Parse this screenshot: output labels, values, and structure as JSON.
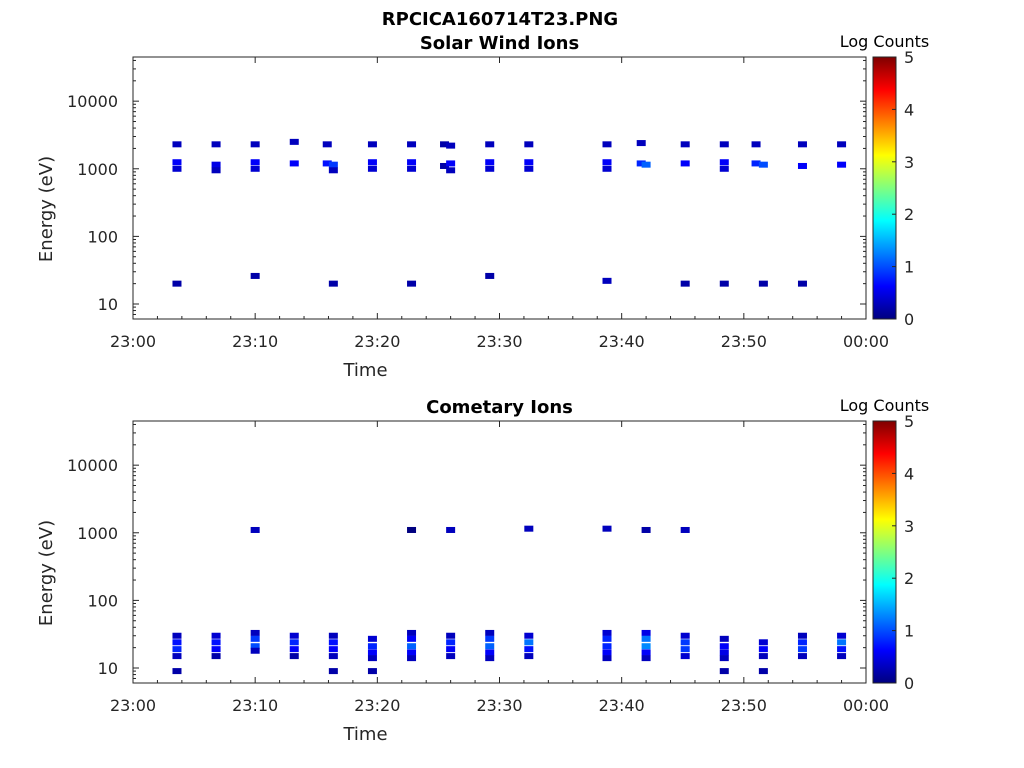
{
  "figure_title": "RPCICA160714T23.PNG",
  "chart_data": [
    {
      "type": "heatmap",
      "title": "Solar Wind Ions",
      "xlabel": "Time",
      "ylabel": "Energy (eV)",
      "x_ticks": [
        "23:00",
        "23:10",
        "23:20",
        "23:30",
        "23:40",
        "23:50",
        "00:00"
      ],
      "x_range_minutes": [
        0,
        60
      ],
      "y_ticks": [
        "10",
        "100",
        "1000",
        "10000"
      ],
      "y_scale": "log",
      "y_range": [
        6,
        45000
      ],
      "colorbar": {
        "label": "Log Counts",
        "range": [
          0,
          5
        ],
        "ticks": [
          "0",
          "1",
          "2",
          "3",
          "4",
          "5"
        ]
      },
      "time_columns_minutes": [
        3.6,
        6.8,
        10.0,
        13.2,
        15.9,
        16.4,
        19.6,
        22.8,
        25.5,
        26.0,
        29.2,
        32.4,
        38.8,
        41.6,
        42.0,
        45.2,
        48.4,
        51.0,
        51.6,
        54.8,
        58.0
      ],
      "cells": [
        {
          "t": 3.6,
          "e": 2300,
          "v": 0.3
        },
        {
          "t": 3.6,
          "e": 1250,
          "v": 0.6
        },
        {
          "t": 3.6,
          "e": 1000,
          "v": 0.4
        },
        {
          "t": 3.6,
          "e": 20,
          "v": 0.2
        },
        {
          "t": 6.8,
          "e": 2300,
          "v": 0.3
        },
        {
          "t": 6.8,
          "e": 1150,
          "v": 0.5
        },
        {
          "t": 6.8,
          "e": 950,
          "v": 0.3
        },
        {
          "t": 10.0,
          "e": 2300,
          "v": 0.3
        },
        {
          "t": 10.0,
          "e": 1250,
          "v": 0.6
        },
        {
          "t": 10.0,
          "e": 1000,
          "v": 0.4
        },
        {
          "t": 10.0,
          "e": 26,
          "v": 0.2
        },
        {
          "t": 13.2,
          "e": 2500,
          "v": 0.3
        },
        {
          "t": 13.2,
          "e": 1200,
          "v": 0.6
        },
        {
          "t": 15.9,
          "e": 2300,
          "v": 0.3
        },
        {
          "t": 15.9,
          "e": 1200,
          "v": 0.7
        },
        {
          "t": 16.4,
          "e": 1150,
          "v": 0.9
        },
        {
          "t": 16.4,
          "e": 950,
          "v": 0.3
        },
        {
          "t": 16.4,
          "e": 20,
          "v": 0.2
        },
        {
          "t": 19.6,
          "e": 2300,
          "v": 0.3
        },
        {
          "t": 19.6,
          "e": 1250,
          "v": 0.6
        },
        {
          "t": 19.6,
          "e": 1000,
          "v": 0.4
        },
        {
          "t": 22.8,
          "e": 2300,
          "v": 0.3
        },
        {
          "t": 22.8,
          "e": 1250,
          "v": 0.6
        },
        {
          "t": 22.8,
          "e": 1000,
          "v": 0.4
        },
        {
          "t": 22.8,
          "e": 20,
          "v": 0.2
        },
        {
          "t": 25.5,
          "e": 2300,
          "v": 0.2
        },
        {
          "t": 25.5,
          "e": 1100,
          "v": 0.2
        },
        {
          "t": 26.0,
          "e": 2200,
          "v": 0.3
        },
        {
          "t": 26.0,
          "e": 1200,
          "v": 0.6
        },
        {
          "t": 26.0,
          "e": 950,
          "v": 0.3
        },
        {
          "t": 29.2,
          "e": 2300,
          "v": 0.3
        },
        {
          "t": 29.2,
          "e": 1250,
          "v": 0.6
        },
        {
          "t": 29.2,
          "e": 1000,
          "v": 0.4
        },
        {
          "t": 29.2,
          "e": 26,
          "v": 0.2
        },
        {
          "t": 32.4,
          "e": 2300,
          "v": 0.3
        },
        {
          "t": 32.4,
          "e": 1250,
          "v": 0.6
        },
        {
          "t": 32.4,
          "e": 1000,
          "v": 0.4
        },
        {
          "t": 38.8,
          "e": 2300,
          "v": 0.3
        },
        {
          "t": 38.8,
          "e": 1250,
          "v": 0.6
        },
        {
          "t": 38.8,
          "e": 1000,
          "v": 0.4
        },
        {
          "t": 38.8,
          "e": 22,
          "v": 0.3
        },
        {
          "t": 41.6,
          "e": 2400,
          "v": 0.3
        },
        {
          "t": 41.6,
          "e": 1200,
          "v": 0.8
        },
        {
          "t": 42.0,
          "e": 1150,
          "v": 1.1
        },
        {
          "t": 45.2,
          "e": 2300,
          "v": 0.3
        },
        {
          "t": 45.2,
          "e": 1200,
          "v": 0.6
        },
        {
          "t": 45.2,
          "e": 20,
          "v": 0.2
        },
        {
          "t": 48.4,
          "e": 2300,
          "v": 0.3
        },
        {
          "t": 48.4,
          "e": 1250,
          "v": 0.6
        },
        {
          "t": 48.4,
          "e": 1000,
          "v": 0.4
        },
        {
          "t": 48.4,
          "e": 20,
          "v": 0.2
        },
        {
          "t": 51.0,
          "e": 2300,
          "v": 0.3
        },
        {
          "t": 51.0,
          "e": 1200,
          "v": 0.8
        },
        {
          "t": 51.6,
          "e": 1150,
          "v": 1.0
        },
        {
          "t": 51.6,
          "e": 20,
          "v": 0.2
        },
        {
          "t": 54.8,
          "e": 2300,
          "v": 0.3
        },
        {
          "t": 54.8,
          "e": 1100,
          "v": 0.6
        },
        {
          "t": 54.8,
          "e": 20,
          "v": 0.2
        },
        {
          "t": 58.0,
          "e": 2300,
          "v": 0.3
        },
        {
          "t": 58.0,
          "e": 1150,
          "v": 0.6
        }
      ]
    },
    {
      "type": "heatmap",
      "title": "Cometary Ions",
      "xlabel": "Time",
      "ylabel": "Energy (eV)",
      "x_ticks": [
        "23:00",
        "23:10",
        "23:20",
        "23:30",
        "23:40",
        "23:50",
        "00:00"
      ],
      "x_range_minutes": [
        0,
        60
      ],
      "y_ticks": [
        "10",
        "100",
        "1000",
        "10000"
      ],
      "y_scale": "log",
      "y_range": [
        6,
        45000
      ],
      "colorbar": {
        "label": "Log Counts",
        "range": [
          0,
          5
        ],
        "ticks": [
          "0",
          "1",
          "2",
          "3",
          "4",
          "5"
        ]
      },
      "time_columns_minutes": [
        3.6,
        6.8,
        10.0,
        13.2,
        16.4,
        19.6,
        22.8,
        26.0,
        29.2,
        32.4,
        38.8,
        42.0,
        45.2,
        48.4,
        51.6,
        54.8,
        58.0
      ],
      "cells": [
        {
          "t": 3.6,
          "e": 30,
          "v": 0.3
        },
        {
          "t": 3.6,
          "e": 24,
          "v": 0.7
        },
        {
          "t": 3.6,
          "e": 19,
          "v": 0.8
        },
        {
          "t": 3.6,
          "e": 15,
          "v": 0.3
        },
        {
          "t": 3.6,
          "e": 9,
          "v": 0.2
        },
        {
          "t": 6.8,
          "e": 30,
          "v": 0.4
        },
        {
          "t": 6.8,
          "e": 24,
          "v": 0.7
        },
        {
          "t": 6.8,
          "e": 19,
          "v": 0.6
        },
        {
          "t": 6.8,
          "e": 15,
          "v": 0.2
        },
        {
          "t": 10.0,
          "e": 1100,
          "v": 0.3
        },
        {
          "t": 10.0,
          "e": 33,
          "v": 0.3
        },
        {
          "t": 10.0,
          "e": 27,
          "v": 0.9
        },
        {
          "t": 10.0,
          "e": 21,
          "v": 1.0
        },
        {
          "t": 10.0,
          "e": 18,
          "v": 0.3
        },
        {
          "t": 13.2,
          "e": 30,
          "v": 0.4
        },
        {
          "t": 13.2,
          "e": 24,
          "v": 0.8
        },
        {
          "t": 13.2,
          "e": 19,
          "v": 0.6
        },
        {
          "t": 13.2,
          "e": 15,
          "v": 0.2
        },
        {
          "t": 16.4,
          "e": 30,
          "v": 0.3
        },
        {
          "t": 16.4,
          "e": 24,
          "v": 0.7
        },
        {
          "t": 16.4,
          "e": 19,
          "v": 0.6
        },
        {
          "t": 16.4,
          "e": 15,
          "v": 0.3
        },
        {
          "t": 16.4,
          "e": 9,
          "v": 0.2
        },
        {
          "t": 19.6,
          "e": 27,
          "v": 0.4
        },
        {
          "t": 19.6,
          "e": 21,
          "v": 0.8
        },
        {
          "t": 19.6,
          "e": 17,
          "v": 0.6
        },
        {
          "t": 19.6,
          "e": 14,
          "v": 0.3
        },
        {
          "t": 19.6,
          "e": 9,
          "v": 0.2
        },
        {
          "t": 22.8,
          "e": 1100,
          "v": 0.0
        },
        {
          "t": 22.8,
          "e": 33,
          "v": 0.3
        },
        {
          "t": 22.8,
          "e": 27,
          "v": 0.6
        },
        {
          "t": 22.8,
          "e": 21,
          "v": 1.1
        },
        {
          "t": 22.8,
          "e": 17,
          "v": 0.6
        },
        {
          "t": 22.8,
          "e": 14,
          "v": 0.3
        },
        {
          "t": 26.0,
          "e": 1100,
          "v": 0.3
        },
        {
          "t": 26.0,
          "e": 30,
          "v": 0.3
        },
        {
          "t": 26.0,
          "e": 24,
          "v": 0.8
        },
        {
          "t": 26.0,
          "e": 19,
          "v": 0.6
        },
        {
          "t": 26.0,
          "e": 15,
          "v": 0.3
        },
        {
          "t": 29.2,
          "e": 33,
          "v": 0.3
        },
        {
          "t": 29.2,
          "e": 27,
          "v": 0.9
        },
        {
          "t": 29.2,
          "e": 21,
          "v": 1.1
        },
        {
          "t": 29.2,
          "e": 17,
          "v": 0.6
        },
        {
          "t": 29.2,
          "e": 14,
          "v": 0.3
        },
        {
          "t": 32.4,
          "e": 1150,
          "v": 0.3
        },
        {
          "t": 32.4,
          "e": 30,
          "v": 0.4
        },
        {
          "t": 32.4,
          "e": 24,
          "v": 1.2
        },
        {
          "t": 32.4,
          "e": 19,
          "v": 0.7
        },
        {
          "t": 32.4,
          "e": 15,
          "v": 0.3
        },
        {
          "t": 38.8,
          "e": 1150,
          "v": 0.3
        },
        {
          "t": 38.8,
          "e": 33,
          "v": 0.4
        },
        {
          "t": 38.8,
          "e": 27,
          "v": 0.8
        },
        {
          "t": 38.8,
          "e": 21,
          "v": 0.8
        },
        {
          "t": 38.8,
          "e": 17,
          "v": 0.6
        },
        {
          "t": 38.8,
          "e": 14,
          "v": 0.3
        },
        {
          "t": 42.0,
          "e": 1100,
          "v": 0.2
        },
        {
          "t": 42.0,
          "e": 33,
          "v": 0.5
        },
        {
          "t": 42.0,
          "e": 27,
          "v": 1.2
        },
        {
          "t": 42.0,
          "e": 21,
          "v": 1.3
        },
        {
          "t": 42.0,
          "e": 17,
          "v": 0.6
        },
        {
          "t": 42.0,
          "e": 14,
          "v": 0.3
        },
        {
          "t": 45.2,
          "e": 1100,
          "v": 0.3
        },
        {
          "t": 45.2,
          "e": 30,
          "v": 0.4
        },
        {
          "t": 45.2,
          "e": 24,
          "v": 0.9
        },
        {
          "t": 45.2,
          "e": 19,
          "v": 0.9
        },
        {
          "t": 45.2,
          "e": 15,
          "v": 0.4
        },
        {
          "t": 48.4,
          "e": 27,
          "v": 0.3
        },
        {
          "t": 48.4,
          "e": 21,
          "v": 0.6
        },
        {
          "t": 48.4,
          "e": 17,
          "v": 0.5
        },
        {
          "t": 48.4,
          "e": 14,
          "v": 0.3
        },
        {
          "t": 48.4,
          "e": 9,
          "v": 0.2
        },
        {
          "t": 51.6,
          "e": 24,
          "v": 0.4
        },
        {
          "t": 51.6,
          "e": 19,
          "v": 0.6
        },
        {
          "t": 51.6,
          "e": 15,
          "v": 0.3
        },
        {
          "t": 51.6,
          "e": 9,
          "v": 0.2
        },
        {
          "t": 54.8,
          "e": 30,
          "v": 0.3
        },
        {
          "t": 54.8,
          "e": 24,
          "v": 0.8
        },
        {
          "t": 54.8,
          "e": 19,
          "v": 0.9
        },
        {
          "t": 54.8,
          "e": 15,
          "v": 0.3
        },
        {
          "t": 58.0,
          "e": 30,
          "v": 0.4
        },
        {
          "t": 58.0,
          "e": 24,
          "v": 1.2
        },
        {
          "t": 58.0,
          "e": 19,
          "v": 0.7
        },
        {
          "t": 58.0,
          "e": 15,
          "v": 0.3
        }
      ]
    }
  ]
}
